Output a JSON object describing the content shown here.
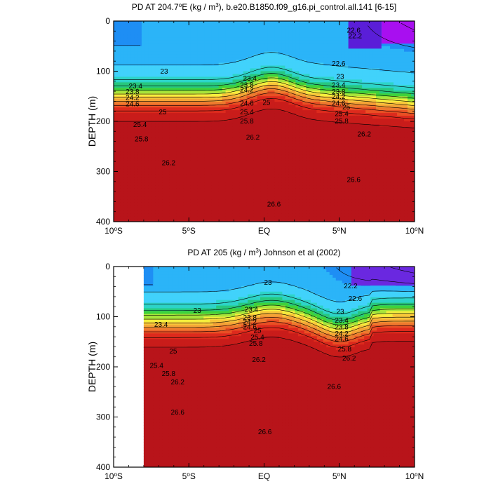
{
  "chart_data": [
    {
      "type": "heatmap",
      "title_prefix": "PD AT 204.7",
      "title_sup_1": "o",
      "title_mid_1": "E (kg / m",
      "title_sup_2": "3",
      "title_suffix": "), b.e20.B1850.f09_g16.pi_control.all.141 [6-15]",
      "ylabel": "DEPTH (m)",
      "x_ticks": [
        {
          "value": -10,
          "label": "10",
          "sup": "o",
          "hemi": "S"
        },
        {
          "value": -5,
          "label": "5",
          "sup": "o",
          "hemi": "S"
        },
        {
          "value": 0,
          "label": "EQ",
          "sup": "",
          "hemi": ""
        },
        {
          "value": 5,
          "label": "5",
          "sup": "o",
          "hemi": "N"
        },
        {
          "value": 10,
          "label": "10",
          "sup": "o",
          "hemi": "N"
        }
      ],
      "y_ticks": [
        0,
        100,
        200,
        300,
        400
      ],
      "xlim": [
        -10,
        10
      ],
      "ylim": [
        0,
        400
      ],
      "data_x_start": -10,
      "contour_levels": [
        22.2,
        22.6,
        23,
        23.4,
        23.8,
        24.2,
        24.6,
        25,
        25.4,
        25.8,
        26.2,
        26.6
      ],
      "labels": [
        {
          "text": "23",
          "lat": -6.9,
          "depth": 101
        },
        {
          "text": "23.4",
          "lat": -1.4,
          "depth": 115
        },
        {
          "text": "23.8",
          "lat": -1.6,
          "depth": 128
        },
        {
          "text": "24.2",
          "lat": -1.6,
          "depth": 138
        },
        {
          "text": "24.6",
          "lat": -1.6,
          "depth": 164
        },
        {
          "text": "25",
          "lat": -0.1,
          "depth": 163
        },
        {
          "text": "25.4",
          "lat": -1.6,
          "depth": 182
        },
        {
          "text": "25.8",
          "lat": -1.6,
          "depth": 200
        },
        {
          "text": "26.2",
          "lat": -1.2,
          "depth": 232
        },
        {
          "text": "26.6",
          "lat": 0.2,
          "depth": 366
        },
        {
          "text": "23.4",
          "lat": -9.0,
          "depth": 130
        },
        {
          "text": "23.8",
          "lat": -9.2,
          "depth": 141
        },
        {
          "text": "24.2",
          "lat": -9.2,
          "depth": 153
        },
        {
          "text": "24.6",
          "lat": -9.2,
          "depth": 166
        },
        {
          "text": "25",
          "lat": -7.0,
          "depth": 182
        },
        {
          "text": "25.4",
          "lat": -8.7,
          "depth": 207
        },
        {
          "text": "25.8",
          "lat": -8.6,
          "depth": 236
        },
        {
          "text": "26.2",
          "lat": -6.8,
          "depth": 283
        },
        {
          "text": "22.6",
          "lat": 4.5,
          "depth": 85
        },
        {
          "text": "23",
          "lat": 4.8,
          "depth": 111
        },
        {
          "text": "23.4",
          "lat": 4.5,
          "depth": 128
        },
        {
          "text": "23.8",
          "lat": 4.5,
          "depth": 141
        },
        {
          "text": "24.2",
          "lat": 4.5,
          "depth": 151
        },
        {
          "text": "24.6",
          "lat": 4.5,
          "depth": 164
        },
        {
          "text": "25",
          "lat": 5.2,
          "depth": 172
        },
        {
          "text": "25.4",
          "lat": 4.7,
          "depth": 185
        },
        {
          "text": "25.8",
          "lat": 4.7,
          "depth": 200
        },
        {
          "text": "26.2",
          "lat": 6.2,
          "depth": 226
        },
        {
          "text": "26.6",
          "lat": 5.5,
          "depth": 317
        },
        {
          "text": "22.6",
          "lat": 5.5,
          "depth": 19
        },
        {
          "text": "22.2",
          "lat": 5.6,
          "depth": 30
        }
      ]
    },
    {
      "type": "heatmap",
      "title_prefix": "PD AT 205 (kg / m",
      "title_sup_1": "3",
      "title_mid_1": ") Johnson et al (2002)",
      "title_sup_2": "",
      "title_suffix": "",
      "ylabel": "DEPTH (m)",
      "x_ticks": [
        {
          "value": -10,
          "label": "10",
          "sup": "o",
          "hemi": "S"
        },
        {
          "value": -5,
          "label": "5",
          "sup": "o",
          "hemi": "S"
        },
        {
          "value": 0,
          "label": "EQ",
          "sup": "",
          "hemi": ""
        },
        {
          "value": 5,
          "label": "5",
          "sup": "o",
          "hemi": "N"
        },
        {
          "value": 10,
          "label": "10",
          "sup": "o",
          "hemi": "N"
        }
      ],
      "y_ticks": [
        0,
        100,
        200,
        300,
        400
      ],
      "xlim": [
        -10,
        10
      ],
      "ylim": [
        0,
        400
      ],
      "data_x_start": -8,
      "contour_levels": [
        22.2,
        22.6,
        23,
        23.4,
        23.8,
        24.2,
        24.6,
        25,
        25.4,
        25.8,
        26.2,
        26.6
      ],
      "labels": [
        {
          "text": "23",
          "lat": 0.0,
          "depth": 32
        },
        {
          "text": "22.2",
          "lat": 5.3,
          "depth": 39
        },
        {
          "text": "22.6",
          "lat": 5.6,
          "depth": 64
        },
        {
          "text": "23",
          "lat": -4.7,
          "depth": 88
        },
        {
          "text": "23",
          "lat": 4.8,
          "depth": 90
        },
        {
          "text": "23.4",
          "lat": -1.3,
          "depth": 86
        },
        {
          "text": "23.8",
          "lat": -1.4,
          "depth": 102
        },
        {
          "text": "24.2",
          "lat": -1.4,
          "depth": 111
        },
        {
          "text": "24.6",
          "lat": -1.4,
          "depth": 121
        },
        {
          "text": "25",
          "lat": -0.7,
          "depth": 128
        },
        {
          "text": "25.4",
          "lat": -0.9,
          "depth": 141
        },
        {
          "text": "25.8",
          "lat": -1.0,
          "depth": 154
        },
        {
          "text": "26.2",
          "lat": -0.8,
          "depth": 186
        },
        {
          "text": "23.4",
          "lat": -7.3,
          "depth": 116
        },
        {
          "text": "25",
          "lat": -6.3,
          "depth": 169
        },
        {
          "text": "25.4",
          "lat": -7.6,
          "depth": 198
        },
        {
          "text": "25.8",
          "lat": -6.8,
          "depth": 214
        },
        {
          "text": "26.2",
          "lat": -6.2,
          "depth": 231
        },
        {
          "text": "23.4",
          "lat": 4.7,
          "depth": 108
        },
        {
          "text": "23.8",
          "lat": 4.7,
          "depth": 121
        },
        {
          "text": "24.2",
          "lat": 4.7,
          "depth": 134
        },
        {
          "text": "24.6",
          "lat": 4.7,
          "depth": 145
        },
        {
          "text": "25.8",
          "lat": 4.9,
          "depth": 165
        },
        {
          "text": "26.2",
          "lat": 5.2,
          "depth": 183
        },
        {
          "text": "26.6",
          "lat": 4.2,
          "depth": 240
        },
        {
          "text": "26.6",
          "lat": -6.2,
          "depth": 291
        },
        {
          "text": "26.6",
          "lat": -0.4,
          "depth": 330
        }
      ]
    }
  ],
  "colorbar_palette": [
    "#0a2ee6",
    "#1060f0",
    "#1e8ef4",
    "#2bb4f8",
    "#41d2fb",
    "#2dd4c8",
    "#27c87e",
    "#3fd23b",
    "#a8e43a",
    "#f5ef3d",
    "#f9c63a",
    "#f4a236",
    "#ee7a2e",
    "#e94f24",
    "#dd2a1d",
    "#c91c1a",
    "#b8141a"
  ]
}
